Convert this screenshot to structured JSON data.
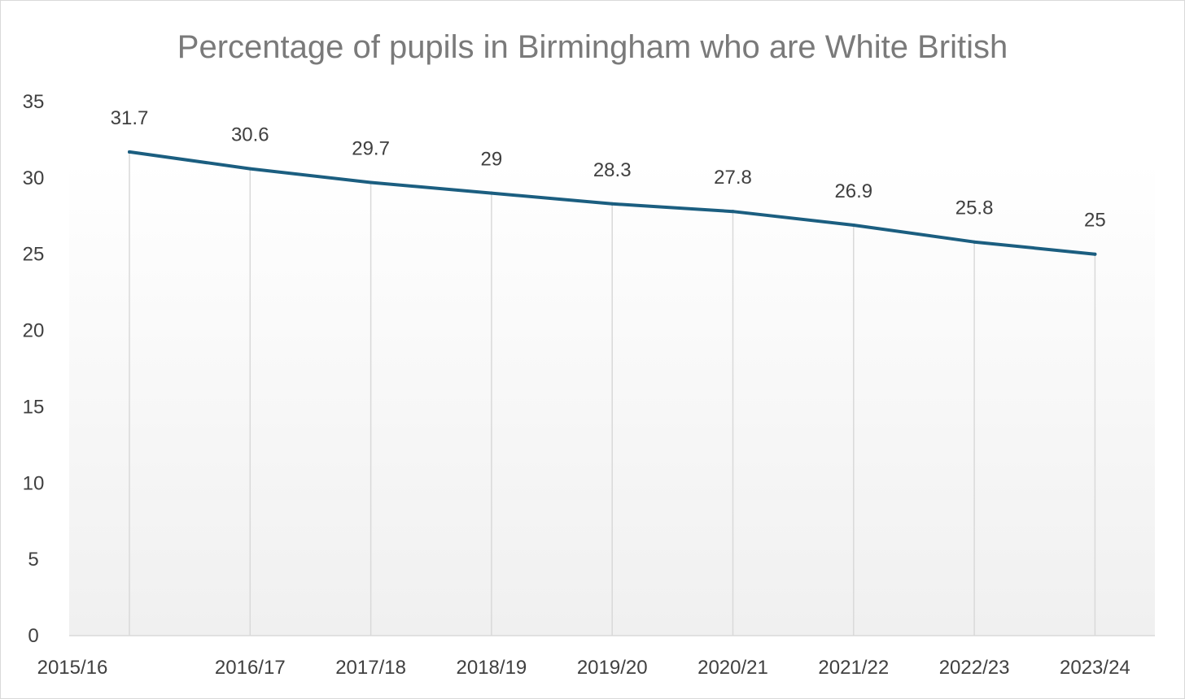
{
  "chart_data": {
    "type": "line",
    "title": "Percentage of pupils in Birmingham who are White British",
    "xlabel": "",
    "ylabel": "",
    "categories": [
      "2015/16",
      "2016/17",
      "2017/18",
      "2018/19",
      "2019/20",
      "2020/21",
      "2021/22",
      "2022/23",
      "2023/24"
    ],
    "series": [
      {
        "name": "White British (%)",
        "values": [
          31.7,
          30.6,
          29.7,
          29,
          28.3,
          27.8,
          26.9,
          25.8,
          25
        ],
        "labels": [
          "31.7",
          "30.6",
          "29.7",
          "29",
          "28.3",
          "27.8",
          "26.9",
          "25.8",
          "25"
        ],
        "color": "#1b5e80"
      }
    ],
    "ylim": [
      0,
      35
    ],
    "yticks": [
      "0",
      "5",
      "10",
      "15",
      "20",
      "25",
      "30",
      "35"
    ],
    "grid": "vertical",
    "legend": "none"
  },
  "colors": {
    "line": "#1b5e80",
    "gridline": "#d9d9d9",
    "axis": "#d9d9d9",
    "background_top": "#ffffff",
    "background_bottom": "#f0f0f0"
  }
}
